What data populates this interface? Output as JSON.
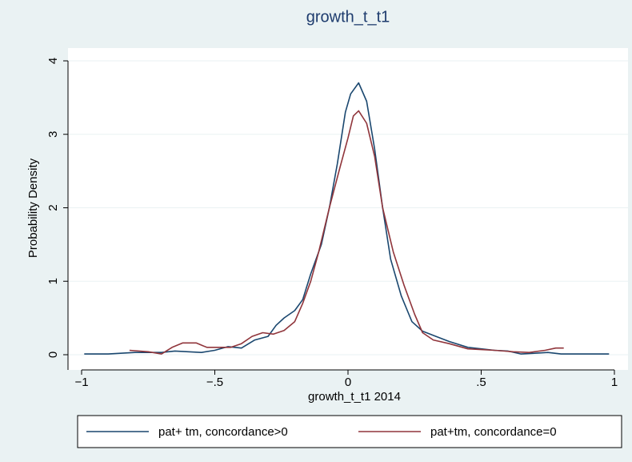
{
  "chart_data": {
    "type": "line",
    "title": "growth_t_t1",
    "xlabel": "growth_t_t1 2014",
    "ylabel": "Probability Density",
    "xlim": [
      -1,
      1
    ],
    "ylim": [
      0,
      4
    ],
    "xticks": [
      {
        "value": -1,
        "label": "−1"
      },
      {
        "value": -0.5,
        "label": "−.5"
      },
      0,
      {
        "value": 0.5,
        "label": ".5"
      },
      1
    ],
    "yticks": [
      0,
      1,
      2,
      3,
      4
    ],
    "grid": true,
    "series": [
      {
        "name": "pat+ tm, concordance>0",
        "color": "#1a476f",
        "x": [
          -0.99,
          -0.9,
          -0.8,
          -0.7,
          -0.65,
          -0.6,
          -0.55,
          -0.5,
          -0.45,
          -0.4,
          -0.35,
          -0.3,
          -0.27,
          -0.24,
          -0.2,
          -0.17,
          -0.14,
          -0.1,
          -0.07,
          -0.04,
          -0.01,
          0.01,
          0.04,
          0.07,
          0.1,
          0.13,
          0.16,
          0.2,
          0.24,
          0.28,
          0.33,
          0.38,
          0.45,
          0.5,
          0.55,
          0.6,
          0.65,
          0.7,
          0.75,
          0.8,
          0.9,
          0.98
        ],
        "values": [
          0.01,
          0.01,
          0.03,
          0.03,
          0.05,
          0.04,
          0.03,
          0.06,
          0.11,
          0.09,
          0.2,
          0.25,
          0.4,
          0.5,
          0.6,
          0.75,
          1.1,
          1.5,
          2.0,
          2.6,
          3.3,
          3.55,
          3.7,
          3.45,
          2.8,
          2.0,
          1.3,
          0.8,
          0.45,
          0.32,
          0.25,
          0.18,
          0.1,
          0.08,
          0.06,
          0.05,
          0.01,
          0.02,
          0.03,
          0.01,
          0.01,
          0.01
        ]
      },
      {
        "name": "pat+tm, concordance=0",
        "color": "#90353b",
        "x": [
          -0.82,
          -0.75,
          -0.7,
          -0.66,
          -0.62,
          -0.57,
          -0.53,
          -0.48,
          -0.44,
          -0.4,
          -0.36,
          -0.32,
          -0.28,
          -0.24,
          -0.2,
          -0.17,
          -0.14,
          -0.11,
          -0.07,
          -0.03,
          0.0,
          0.02,
          0.04,
          0.07,
          0.1,
          0.13,
          0.17,
          0.21,
          0.25,
          0.28,
          0.32,
          0.38,
          0.45,
          0.5,
          0.55,
          0.62,
          0.68,
          0.74,
          0.78,
          0.81
        ],
        "values": [
          0.06,
          0.04,
          0.01,
          0.1,
          0.16,
          0.16,
          0.1,
          0.1,
          0.1,
          0.15,
          0.25,
          0.3,
          0.28,
          0.33,
          0.45,
          0.7,
          1.0,
          1.4,
          2.0,
          2.55,
          2.95,
          3.25,
          3.32,
          3.15,
          2.7,
          2.0,
          1.4,
          0.95,
          0.55,
          0.3,
          0.2,
          0.15,
          0.08,
          0.07,
          0.06,
          0.04,
          0.03,
          0.06,
          0.09,
          0.09
        ]
      }
    ]
  }
}
